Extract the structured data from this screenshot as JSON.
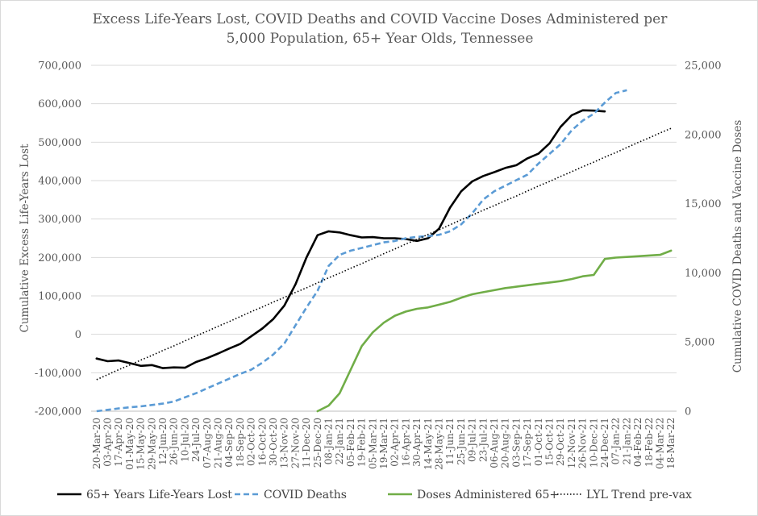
{
  "chart_data": {
    "type": "line",
    "title": [
      "Excess Life-Years Lost, COVID Deaths and COVID Vaccine Doses Administered per",
      "5,000 Population, 65+ Year Olds, Tennessee"
    ],
    "ylabel": "Cumulative Excess Life-Years Lost",
    "y2label": "Cumulative COVID Deaths and Vaccine Doses",
    "ylim": [
      -200000,
      700000
    ],
    "y2lim": [
      0,
      25000
    ],
    "y_ticks": [
      "700,000",
      "600,000",
      "500,000",
      "400,000",
      "300,000",
      "200,000",
      "100,000",
      "0",
      "-100,000",
      "-200,000"
    ],
    "y2_ticks": [
      "25,000",
      "20,000",
      "15,000",
      "10,000",
      "5,000",
      "0"
    ],
    "categories": [
      "20-Mar-20",
      "03-Apr-20",
      "17-Apr-20",
      "01-May-20",
      "15-May-20",
      "29-May-20",
      "12-Jun-20",
      "26-Jun-20",
      "10-Jul-20",
      "24-Jul-20",
      "07-Aug-20",
      "21-Aug-20",
      "04-Sep-20",
      "18-Sep-20",
      "02-Oct-20",
      "16-Oct-20",
      "30-Oct-20",
      "13-Nov-20",
      "27-Nov-20",
      "11-Dec-20",
      "25-Dec-20",
      "08-Jan-21",
      "22-Jan-21",
      "05-Feb-21",
      "19-Feb-21",
      "05-Mar-21",
      "19-Mar-21",
      "02-Apr-21",
      "16-Apr-21",
      "30-Apr-21",
      "14-May-21",
      "28-May-21",
      "11-Jun-21",
      "25-Jun-21",
      "09-Jul-21",
      "23-Jul-21",
      "06-Aug-21",
      "20-Aug-21",
      "03-Sep-21",
      "17-Sep-21",
      "01-Oct-21",
      "15-Oct-21",
      "29-Oct-21",
      "12-Nov-21",
      "26-Nov-21",
      "10-Dec-21",
      "24-Dec-21",
      "07-Jan-22",
      "21-Jan-22",
      "04-Feb-22",
      "18-Feb-22",
      "04-Mar-22",
      "18-Mar-22"
    ],
    "series": [
      {
        "name": "65+ Years Life-Years Lost",
        "axis": "left",
        "color": "#000000",
        "dash": "solid",
        "values": [
          -63000,
          -70000,
          -68000,
          -75000,
          -82000,
          -80000,
          -88000,
          -86000,
          -87000,
          -72000,
          -62000,
          -50000,
          -37000,
          -25000,
          -5000,
          15000,
          40000,
          75000,
          130000,
          200000,
          258000,
          268000,
          265000,
          258000,
          252000,
          253000,
          250000,
          250000,
          248000,
          243000,
          250000,
          275000,
          330000,
          372000,
          398000,
          412000,
          422000,
          433000,
          440000,
          458000,
          470000,
          497000,
          540000,
          570000,
          583000,
          582000,
          580000,
          null,
          null,
          null,
          null,
          null,
          null
        ]
      },
      {
        "name": "COVID Deaths",
        "axis": "right",
        "color": "#5b9bd5",
        "dash": "dashed",
        "values": [
          0,
          100,
          200,
          280,
          350,
          450,
          550,
          700,
          1000,
          1300,
          1650,
          2000,
          2350,
          2700,
          3000,
          3500,
          4100,
          4900,
          6200,
          7500,
          8700,
          10500,
          11300,
          11600,
          11800,
          12000,
          12200,
          12300,
          12500,
          12600,
          12650,
          12750,
          13000,
          13500,
          14300,
          15300,
          15900,
          16300,
          16700,
          17100,
          17900,
          18600,
          19300,
          20300,
          21000,
          21500,
          22300,
          23000,
          23200,
          null,
          null,
          null,
          null
        ]
      },
      {
        "name": "Doses Administered 65+",
        "axis": "right",
        "color": "#70ad47",
        "dash": "solid",
        "values": [
          null,
          null,
          null,
          null,
          null,
          null,
          null,
          null,
          null,
          null,
          null,
          null,
          null,
          null,
          null,
          null,
          null,
          null,
          null,
          null,
          0,
          400,
          1300,
          3000,
          4700,
          5700,
          6400,
          6900,
          7200,
          7400,
          7500,
          7700,
          7900,
          8200,
          8450,
          8600,
          8750,
          8900,
          9000,
          9100,
          9200,
          9300,
          9400,
          9550,
          9750,
          9850,
          11000,
          11100,
          11150,
          11200,
          11250,
          11300,
          11600
        ]
      },
      {
        "name": "LYL Trend pre-vax",
        "axis": "left",
        "color": "#000000",
        "dash": "dotted",
        "values": [
          -118000,
          -105000,
          -92000,
          -80000,
          -67000,
          -55000,
          -42000,
          -30000,
          -17000,
          -4000,
          8000,
          21000,
          33000,
          46000,
          59000,
          71000,
          84000,
          96000,
          109000,
          121000,
          134000,
          147000,
          159000,
          172000,
          184000,
          197000,
          210000,
          222000,
          235000,
          247000,
          260000,
          272000,
          285000,
          298000,
          310000,
          323000,
          335000,
          348000,
          360000,
          373000,
          386000,
          398000,
          411000,
          423000,
          436000,
          448000,
          461000,
          473000,
          486000,
          499000,
          511000,
          524000,
          536000
        ]
      }
    ],
    "legend": [
      "65+ Years Life-Years Lost",
      "COVID Deaths",
      "Doses Administered 65+",
      "LYL Trend pre-vax"
    ],
    "legend_position": "bottom",
    "grid": "horizontal"
  }
}
